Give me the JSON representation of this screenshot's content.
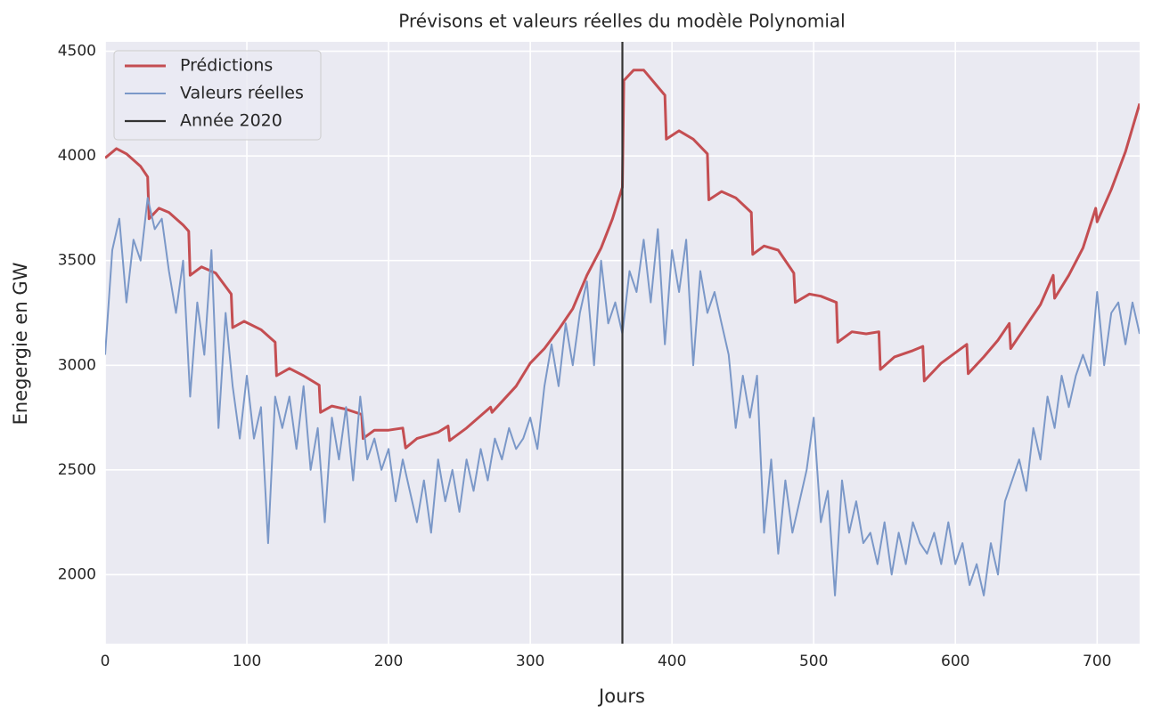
{
  "chart_data": {
    "type": "line",
    "title": "Prévisons et valeurs réelles du modèle Polynomial",
    "x_label": "Jours",
    "y_label": "Enegergie en GW",
    "xlim": [
      0,
      730
    ],
    "ylim": [
      1670,
      4545
    ],
    "xticks": [
      0,
      100,
      200,
      300,
      400,
      500,
      600,
      700
    ],
    "yticks": [
      2000,
      2500,
      3000,
      3500,
      4000,
      4500
    ],
    "grid": true,
    "legend": "upper-left",
    "series": [
      {
        "name": "Prédictions",
        "color": "#c44e52",
        "width": 3,
        "x": [
          0,
          8,
          15,
          25,
          30,
          31,
          38,
          45,
          55,
          59,
          60,
          68,
          78,
          89,
          90,
          98,
          110,
          120,
          121,
          130,
          140,
          151,
          152,
          160,
          170,
          181,
          182,
          190,
          200,
          210,
          212,
          220,
          235,
          242,
          243,
          255,
          272,
          273,
          290,
          300,
          310,
          320,
          330,
          340,
          350,
          358,
          365,
          366,
          373,
          380,
          390,
          395,
          396,
          405,
          415,
          425,
          426,
          435,
          445,
          456,
          457,
          465,
          475,
          486,
          487,
          497,
          505,
          516,
          517,
          527,
          537,
          546,
          547,
          557,
          570,
          577,
          578,
          590,
          600,
          608,
          609,
          620,
          630,
          638,
          639,
          650,
          660,
          669,
          670,
          680,
          690,
          699,
          700,
          710,
          720,
          730
        ],
        "values": [
          3990,
          4035,
          4010,
          3950,
          3900,
          3700,
          3750,
          3730,
          3670,
          3640,
          3430,
          3470,
          3440,
          3340,
          3180,
          3210,
          3170,
          3110,
          2950,
          2985,
          2950,
          2905,
          2775,
          2805,
          2790,
          2765,
          2650,
          2690,
          2690,
          2700,
          2605,
          2650,
          2680,
          2710,
          2640,
          2700,
          2800,
          2775,
          2900,
          3010,
          3080,
          3170,
          3270,
          3430,
          3560,
          3700,
          3850,
          4360,
          4410,
          4410,
          4330,
          4290,
          4080,
          4120,
          4080,
          4010,
          3790,
          3830,
          3800,
          3730,
          3530,
          3570,
          3550,
          3440,
          3300,
          3340,
          3330,
          3300,
          3110,
          3160,
          3150,
          3160,
          2980,
          3040,
          3070,
          3090,
          2925,
          3010,
          3060,
          3100,
          2960,
          3040,
          3120,
          3200,
          3080,
          3190,
          3290,
          3430,
          3320,
          3430,
          3560,
          3750,
          3685,
          3840,
          4020,
          4250
        ]
      },
      {
        "name": "Valeurs réelles",
        "color": "#7b98c8",
        "width": 2,
        "x": [
          0,
          5,
          10,
          15,
          20,
          25,
          30,
          35,
          40,
          45,
          50,
          55,
          60,
          65,
          70,
          75,
          80,
          85,
          90,
          95,
          100,
          105,
          110,
          115,
          120,
          125,
          130,
          135,
          140,
          145,
          150,
          155,
          160,
          165,
          170,
          175,
          180,
          185,
          190,
          195,
          200,
          205,
          210,
          215,
          220,
          225,
          230,
          235,
          240,
          245,
          250,
          255,
          260,
          265,
          270,
          275,
          280,
          285,
          290,
          295,
          300,
          305,
          310,
          315,
          320,
          325,
          330,
          335,
          340,
          345,
          350,
          355,
          360,
          365,
          370,
          375,
          380,
          385,
          390,
          395,
          400,
          405,
          410,
          415,
          420,
          425,
          430,
          435,
          440,
          445,
          450,
          455,
          460,
          465,
          470,
          475,
          480,
          485,
          490,
          495,
          500,
          505,
          510,
          515,
          520,
          525,
          530,
          535,
          540,
          545,
          550,
          555,
          560,
          565,
          570,
          575,
          580,
          585,
          590,
          595,
          600,
          605,
          610,
          615,
          620,
          625,
          630,
          635,
          640,
          645,
          650,
          655,
          660,
          665,
          670,
          675,
          680,
          685,
          690,
          695,
          700,
          705,
          710,
          715,
          720,
          725,
          730
        ],
        "values": [
          3050,
          3550,
          3700,
          3300,
          3600,
          3500,
          3800,
          3650,
          3700,
          3450,
          3250,
          3500,
          2850,
          3300,
          3050,
          3550,
          2700,
          3250,
          2900,
          2650,
          2950,
          2650,
          2800,
          2150,
          2850,
          2700,
          2850,
          2600,
          2900,
          2500,
          2700,
          2250,
          2750,
          2550,
          2800,
          2450,
          2850,
          2550,
          2650,
          2500,
          2600,
          2350,
          2550,
          2400,
          2250,
          2450,
          2200,
          2550,
          2350,
          2500,
          2300,
          2550,
          2400,
          2600,
          2450,
          2650,
          2550,
          2700,
          2600,
          2650,
          2750,
          2600,
          2900,
          3100,
          2900,
          3200,
          3000,
          3250,
          3400,
          3000,
          3500,
          3200,
          3300,
          3150,
          3450,
          3350,
          3600,
          3300,
          3650,
          3100,
          3550,
          3350,
          3600,
          3000,
          3450,
          3250,
          3350,
          3200,
          3050,
          2700,
          2950,
          2750,
          2950,
          2200,
          2550,
          2100,
          2450,
          2200,
          2350,
          2500,
          2750,
          2250,
          2400,
          1900,
          2450,
          2200,
          2350,
          2150,
          2200,
          2050,
          2250,
          2000,
          2200,
          2050,
          2250,
          2150,
          2100,
          2200,
          2050,
          2250,
          2050,
          2150,
          1950,
          2050,
          1900,
          2150,
          2000,
          2350,
          2450,
          2550,
          2400,
          2700,
          2550,
          2850,
          2700,
          2950,
          2800,
          2950,
          3050,
          2950,
          3350,
          3000,
          3250,
          3300,
          3100,
          3300,
          3150
        ]
      },
      {
        "name": "Année 2020",
        "color": "#333333",
        "width": 2.2,
        "vline": 365
      }
    ]
  }
}
